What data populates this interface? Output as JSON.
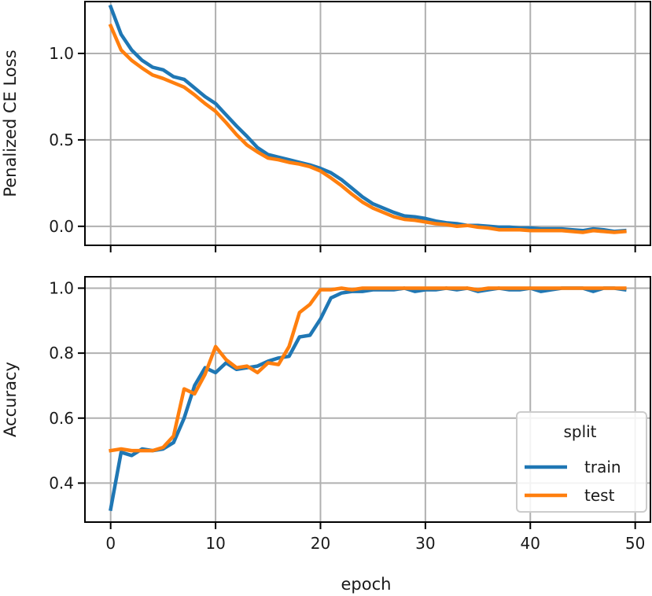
{
  "chart_data": [
    {
      "type": "line",
      "ylabel": "Penalized CE Loss",
      "xlim": [
        -2.45,
        51.45
      ],
      "ylim": [
        -0.11,
        1.3
      ],
      "xticks": [
        0,
        10,
        20,
        30,
        40,
        50
      ],
      "yticks": [
        0.0,
        0.5,
        1.0
      ],
      "ytick_labels": [
        "0.0",
        "0.5",
        "1.0"
      ],
      "grid": true,
      "series": [
        {
          "name": "train",
          "color": "#1f77b4",
          "x": [
            0,
            1,
            2,
            3,
            4,
            5,
            6,
            7,
            8,
            9,
            10,
            11,
            12,
            13,
            14,
            15,
            16,
            17,
            18,
            19,
            20,
            21,
            22,
            23,
            24,
            25,
            26,
            27,
            28,
            29,
            30,
            31,
            32,
            33,
            34,
            35,
            36,
            37,
            38,
            39,
            40,
            41,
            42,
            43,
            44,
            45,
            46,
            47,
            48,
            49
          ],
          "y": [
            1.27,
            1.11,
            1.02,
            0.96,
            0.92,
            0.905,
            0.865,
            0.85,
            0.8,
            0.75,
            0.71,
            0.645,
            0.58,
            0.52,
            0.455,
            0.415,
            0.4,
            0.385,
            0.37,
            0.355,
            0.335,
            0.31,
            0.27,
            0.22,
            0.17,
            0.13,
            0.105,
            0.08,
            0.06,
            0.055,
            0.045,
            0.03,
            0.02,
            0.015,
            0.005,
            0.005,
            0.0,
            -0.005,
            -0.005,
            -0.01,
            -0.01,
            -0.015,
            -0.015,
            -0.015,
            -0.02,
            -0.025,
            -0.015,
            -0.02,
            -0.03,
            -0.025
          ]
        },
        {
          "name": "test",
          "color": "#ff7f0e",
          "x": [
            0,
            1,
            2,
            3,
            4,
            5,
            6,
            7,
            8,
            9,
            10,
            11,
            12,
            13,
            14,
            15,
            16,
            17,
            18,
            19,
            20,
            21,
            22,
            23,
            24,
            25,
            26,
            27,
            28,
            29,
            30,
            31,
            32,
            33,
            34,
            35,
            36,
            37,
            38,
            39,
            40,
            41,
            42,
            43,
            44,
            45,
            46,
            47,
            48,
            49
          ],
          "y": [
            1.16,
            1.02,
            0.96,
            0.915,
            0.875,
            0.855,
            0.83,
            0.805,
            0.76,
            0.71,
            0.665,
            0.6,
            0.53,
            0.47,
            0.43,
            0.395,
            0.385,
            0.37,
            0.36,
            0.345,
            0.32,
            0.28,
            0.235,
            0.185,
            0.14,
            0.105,
            0.08,
            0.055,
            0.04,
            0.035,
            0.025,
            0.015,
            0.01,
            0.0,
            0.005,
            -0.005,
            -0.01,
            -0.02,
            -0.02,
            -0.02,
            -0.025,
            -0.025,
            -0.025,
            -0.025,
            -0.03,
            -0.035,
            -0.025,
            -0.03,
            -0.035,
            -0.03
          ]
        }
      ]
    },
    {
      "type": "line",
      "xlabel": "epoch",
      "ylabel": "Accuracy",
      "xlim": [
        -2.45,
        51.45
      ],
      "ylim": [
        0.28,
        1.035
      ],
      "xticks": [
        0,
        10,
        20,
        30,
        40,
        50
      ],
      "yticks": [
        0.4,
        0.6,
        0.8,
        1.0
      ],
      "ytick_labels": [
        "0.4",
        "0.6",
        "0.8",
        "1.0"
      ],
      "grid": true,
      "legend": {
        "title": "split",
        "placement": "lower-right",
        "entries": [
          "train",
          "test"
        ]
      },
      "series": [
        {
          "name": "train",
          "color": "#1f77b4",
          "x": [
            0,
            1,
            2,
            3,
            4,
            5,
            6,
            7,
            8,
            9,
            10,
            11,
            12,
            13,
            14,
            15,
            16,
            17,
            18,
            19,
            20,
            21,
            22,
            23,
            24,
            25,
            26,
            27,
            28,
            29,
            30,
            31,
            32,
            33,
            34,
            35,
            36,
            37,
            38,
            39,
            40,
            41,
            42,
            43,
            44,
            45,
            46,
            47,
            48,
            49
          ],
          "y": [
            0.32,
            0.495,
            0.485,
            0.505,
            0.5,
            0.505,
            0.525,
            0.6,
            0.7,
            0.755,
            0.74,
            0.77,
            0.75,
            0.755,
            0.76,
            0.775,
            0.785,
            0.79,
            0.85,
            0.855,
            0.905,
            0.97,
            0.985,
            0.99,
            0.99,
            0.995,
            0.995,
            0.995,
            1.0,
            0.99,
            0.995,
            0.995,
            1.0,
            0.995,
            1.0,
            0.99,
            0.995,
            1.0,
            0.995,
            0.995,
            1.0,
            0.99,
            0.995,
            1.0,
            1.0,
            1.0,
            0.99,
            1.0,
            1.0,
            0.995
          ]
        },
        {
          "name": "test",
          "color": "#ff7f0e",
          "x": [
            0,
            1,
            2,
            3,
            4,
            5,
            6,
            7,
            8,
            9,
            10,
            11,
            12,
            13,
            14,
            15,
            16,
            17,
            18,
            19,
            20,
            21,
            22,
            23,
            24,
            25,
            26,
            27,
            28,
            29,
            30,
            31,
            32,
            33,
            34,
            35,
            36,
            37,
            38,
            39,
            40,
            41,
            42,
            43,
            44,
            45,
            46,
            47,
            48,
            49
          ],
          "y": [
            0.5,
            0.505,
            0.5,
            0.5,
            0.5,
            0.51,
            0.545,
            0.69,
            0.675,
            0.735,
            0.82,
            0.78,
            0.755,
            0.76,
            0.74,
            0.77,
            0.765,
            0.82,
            0.925,
            0.95,
            0.995,
            0.995,
            1.0,
            0.995,
            1.0,
            1.0,
            1.0,
            1.0,
            1.0,
            1.0,
            1.0,
            1.0,
            1.0,
            1.0,
            1.0,
            0.995,
            1.0,
            1.0,
            1.0,
            1.0,
            1.0,
            1.0,
            1.0,
            1.0,
            1.0,
            1.0,
            1.0,
            1.0,
            1.0,
            1.0
          ]
        }
      ]
    }
  ]
}
